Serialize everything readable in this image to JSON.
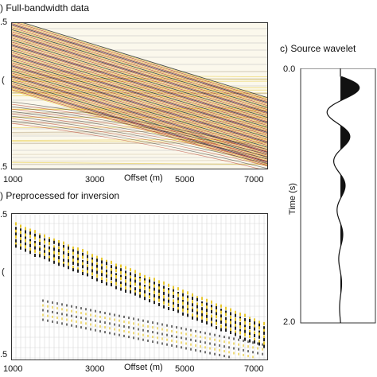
{
  "panel_a": {
    "title": ") Full-bandwidth data",
    "y_ticks": [
      ".5",
      ".5"
    ],
    "y_partial": "(",
    "x_ticks": [
      "1000",
      "3000",
      "5000",
      "7000"
    ],
    "x_label": "Offset (m)"
  },
  "panel_b": {
    "title": ") Preprocessed for inversion",
    "y_ticks": [
      ".5",
      ".5"
    ],
    "y_partial": "(",
    "x_ticks": [
      "1000",
      "3000",
      "5000",
      "7000"
    ],
    "x_label": "Offset (m)"
  },
  "panel_c": {
    "title": "c) Source wavelet",
    "y_label": "Time (s)",
    "y_ticks": [
      "0.0",
      "2.0"
    ]
  },
  "colors": {
    "yellow": "#e8c830",
    "red": "#b02818",
    "dark": "#222222",
    "grid": "#bbbbbb"
  }
}
